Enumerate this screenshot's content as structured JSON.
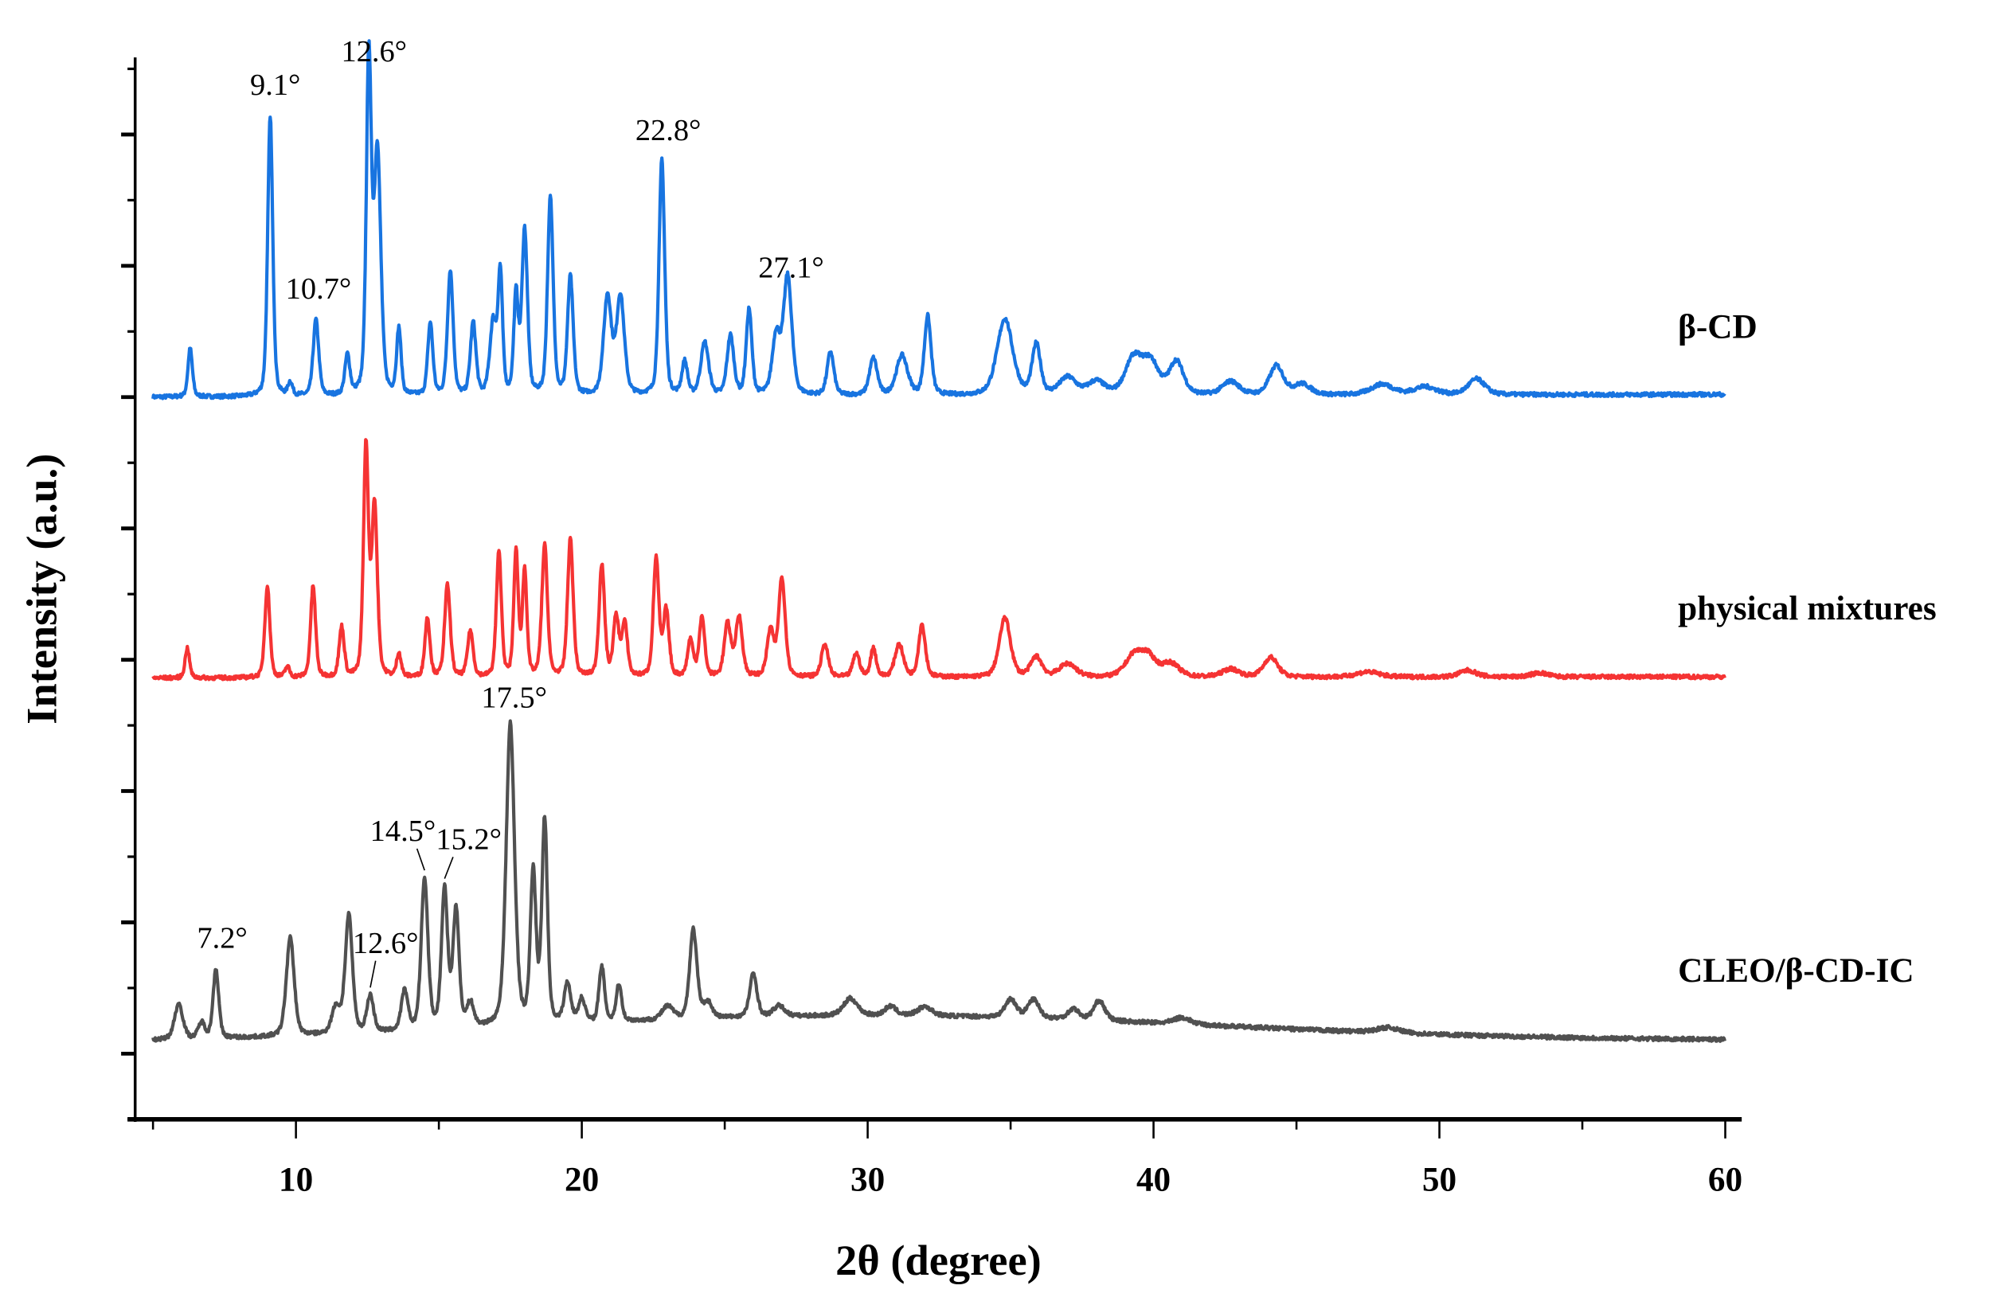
{
  "chart_data": {
    "type": "line",
    "title": "",
    "xlabel": "2θ (degree)",
    "ylabel": "Intensity (a.u.)",
    "xlim": [
      4.5,
      60.5
    ],
    "ylim": [
      0,
      8.1
    ],
    "x_ticks": [
      "10",
      "20",
      "30",
      "40",
      "50",
      "60"
    ],
    "y_tick_labels": false,
    "grid": false,
    "legend": "none; series labeled inline at right",
    "series": [
      {
        "name": "β-CD",
        "color": "#1874e0",
        "baseline": [
          [
            5,
            5.5
          ],
          [
            60,
            5.52
          ]
        ],
        "peaks": [
          [
            6.3,
            0.37,
            0.08
          ],
          [
            9.1,
            2.14,
            0.09
          ],
          [
            9.8,
            0.1,
            0.08
          ],
          [
            10.7,
            0.58,
            0.1
          ],
          [
            11.8,
            0.3,
            0.09
          ],
          [
            12.55,
            2.55,
            0.09
          ],
          [
            12.85,
            1.85,
            0.12
          ],
          [
            13.6,
            0.5,
            0.08
          ],
          [
            14.7,
            0.55,
            0.09
          ],
          [
            15.4,
            0.95,
            0.1
          ],
          [
            16.2,
            0.55,
            0.1
          ],
          [
            16.9,
            0.55,
            0.12
          ],
          [
            17.15,
            0.9,
            0.08
          ],
          [
            17.7,
            0.75,
            0.08
          ],
          [
            18.0,
            1.25,
            0.1
          ],
          [
            18.9,
            1.5,
            0.1
          ],
          [
            19.6,
            0.9,
            0.1
          ],
          [
            20.9,
            0.75,
            0.14
          ],
          [
            21.35,
            0.75,
            0.14
          ],
          [
            22.8,
            1.8,
            0.1
          ],
          [
            23.6,
            0.25,
            0.1
          ],
          [
            24.3,
            0.4,
            0.14
          ],
          [
            25.2,
            0.45,
            0.12
          ],
          [
            25.85,
            0.65,
            0.1
          ],
          [
            26.8,
            0.45,
            0.14
          ],
          [
            27.2,
            0.9,
            0.15
          ],
          [
            28.7,
            0.33,
            0.12
          ],
          [
            30.2,
            0.28,
            0.14
          ],
          [
            31.2,
            0.3,
            0.2
          ],
          [
            32.1,
            0.6,
            0.12
          ],
          [
            34.8,
            0.58,
            0.28
          ],
          [
            35.9,
            0.38,
            0.15
          ],
          [
            37.0,
            0.13,
            0.3
          ],
          [
            38.0,
            0.1,
            0.3
          ],
          [
            39.3,
            0.27,
            0.3
          ],
          [
            39.9,
            0.24,
            0.3
          ],
          [
            40.8,
            0.25,
            0.25
          ],
          [
            42.7,
            0.1,
            0.3
          ],
          [
            44.3,
            0.22,
            0.25
          ],
          [
            45.2,
            0.08,
            0.3
          ],
          [
            48.0,
            0.08,
            0.4
          ],
          [
            49.5,
            0.06,
            0.4
          ],
          [
            51.3,
            0.12,
            0.3
          ]
        ],
        "annotations": [
          {
            "angle": 9.1,
            "text": "9.1°"
          },
          {
            "angle": 12.6,
            "text": "12.6°"
          },
          {
            "angle": 10.7,
            "text": "10.7°"
          },
          {
            "angle": 22.8,
            "text": "22.8°"
          },
          {
            "angle": 27.1,
            "text": "27.1°"
          }
        ]
      },
      {
        "name": "physical mixtures",
        "color": "#f53333",
        "baseline": [
          [
            5,
            3.36
          ],
          [
            60,
            3.37
          ]
        ],
        "peaks": [
          [
            6.2,
            0.23,
            0.08
          ],
          [
            9.0,
            0.7,
            0.09
          ],
          [
            9.7,
            0.08,
            0.08
          ],
          [
            10.6,
            0.7,
            0.09
          ],
          [
            11.6,
            0.38,
            0.09
          ],
          [
            12.45,
            1.75,
            0.09
          ],
          [
            12.75,
            1.3,
            0.1
          ],
          [
            13.6,
            0.18,
            0.08
          ],
          [
            14.6,
            0.45,
            0.09
          ],
          [
            15.3,
            0.7,
            0.1
          ],
          [
            16.1,
            0.35,
            0.1
          ],
          [
            17.1,
            0.95,
            0.09
          ],
          [
            17.7,
            0.95,
            0.08
          ],
          [
            18.0,
            0.8,
            0.08
          ],
          [
            18.7,
            1.0,
            0.1
          ],
          [
            19.6,
            1.05,
            0.1
          ],
          [
            20.7,
            0.85,
            0.1
          ],
          [
            21.2,
            0.45,
            0.1
          ],
          [
            21.5,
            0.4,
            0.1
          ],
          [
            22.6,
            0.9,
            0.1
          ],
          [
            22.95,
            0.5,
            0.1
          ],
          [
            23.8,
            0.28,
            0.1
          ],
          [
            24.2,
            0.45,
            0.1
          ],
          [
            25.1,
            0.4,
            0.12
          ],
          [
            25.5,
            0.45,
            0.12
          ],
          [
            26.6,
            0.35,
            0.12
          ],
          [
            27.0,
            0.75,
            0.12
          ],
          [
            28.5,
            0.25,
            0.12
          ],
          [
            29.6,
            0.18,
            0.12
          ],
          [
            30.2,
            0.22,
            0.1
          ],
          [
            31.1,
            0.25,
            0.15
          ],
          [
            31.9,
            0.4,
            0.12
          ],
          [
            34.8,
            0.45,
            0.2
          ],
          [
            35.9,
            0.15,
            0.2
          ],
          [
            37.0,
            0.1,
            0.3
          ],
          [
            39.3,
            0.15,
            0.3
          ],
          [
            39.8,
            0.15,
            0.3
          ],
          [
            40.6,
            0.1,
            0.3
          ],
          [
            42.7,
            0.06,
            0.3
          ],
          [
            44.1,
            0.15,
            0.25
          ],
          [
            47.5,
            0.04,
            0.4
          ],
          [
            51.0,
            0.05,
            0.3
          ],
          [
            53.5,
            0.03,
            0.3
          ]
        ],
        "annotations": []
      },
      {
        "name": "CLEO/β-CD-IC",
        "color": "#505050",
        "baseline": [
          [
            5,
            0.58
          ],
          [
            60,
            0.6
          ]
        ],
        "amorphous_halo": {
          "center": 30,
          "height": 0.2,
          "width": 12
        },
        "peaks": [
          [
            5.9,
            0.27,
            0.15
          ],
          [
            6.7,
            0.12,
            0.12
          ],
          [
            7.2,
            0.53,
            0.1
          ],
          [
            9.8,
            0.75,
            0.14
          ],
          [
            11.4,
            0.2,
            0.15
          ],
          [
            11.85,
            0.9,
            0.13
          ],
          [
            12.6,
            0.28,
            0.12
          ],
          [
            13.8,
            0.3,
            0.12
          ],
          [
            14.5,
            1.15,
            0.12
          ],
          [
            15.2,
            1.05,
            0.11
          ],
          [
            15.6,
            0.9,
            0.11
          ],
          [
            16.1,
            0.18,
            0.12
          ],
          [
            17.5,
            2.3,
            0.15
          ],
          [
            18.3,
            1.15,
            0.1
          ],
          [
            18.7,
            1.55,
            0.1
          ],
          [
            19.5,
            0.3,
            0.12
          ],
          [
            20.0,
            0.18,
            0.12
          ],
          [
            20.7,
            0.42,
            0.1
          ],
          [
            21.3,
            0.28,
            0.1
          ],
          [
            23.0,
            0.1,
            0.2
          ],
          [
            23.9,
            0.68,
            0.13
          ],
          [
            24.4,
            0.12,
            0.15
          ],
          [
            26.0,
            0.33,
            0.13
          ],
          [
            26.9,
            0.08,
            0.2
          ],
          [
            29.4,
            0.13,
            0.25
          ],
          [
            30.8,
            0.07,
            0.2
          ],
          [
            32.0,
            0.07,
            0.25
          ],
          [
            35.0,
            0.14,
            0.2
          ],
          [
            35.8,
            0.14,
            0.2
          ],
          [
            37.2,
            0.08,
            0.2
          ],
          [
            38.1,
            0.15,
            0.2
          ],
          [
            41.0,
            0.05,
            0.3
          ],
          [
            48.2,
            0.04,
            0.4
          ]
        ],
        "annotations": [
          {
            "angle": 7.2,
            "text": "7.2°"
          },
          {
            "angle": 12.6,
            "text": "12.6°"
          },
          {
            "angle": 14.5,
            "text": "14.5°"
          },
          {
            "angle": 15.2,
            "text": "15.2°"
          },
          {
            "angle": 17.5,
            "text": "17.5°"
          }
        ]
      }
    ]
  }
}
